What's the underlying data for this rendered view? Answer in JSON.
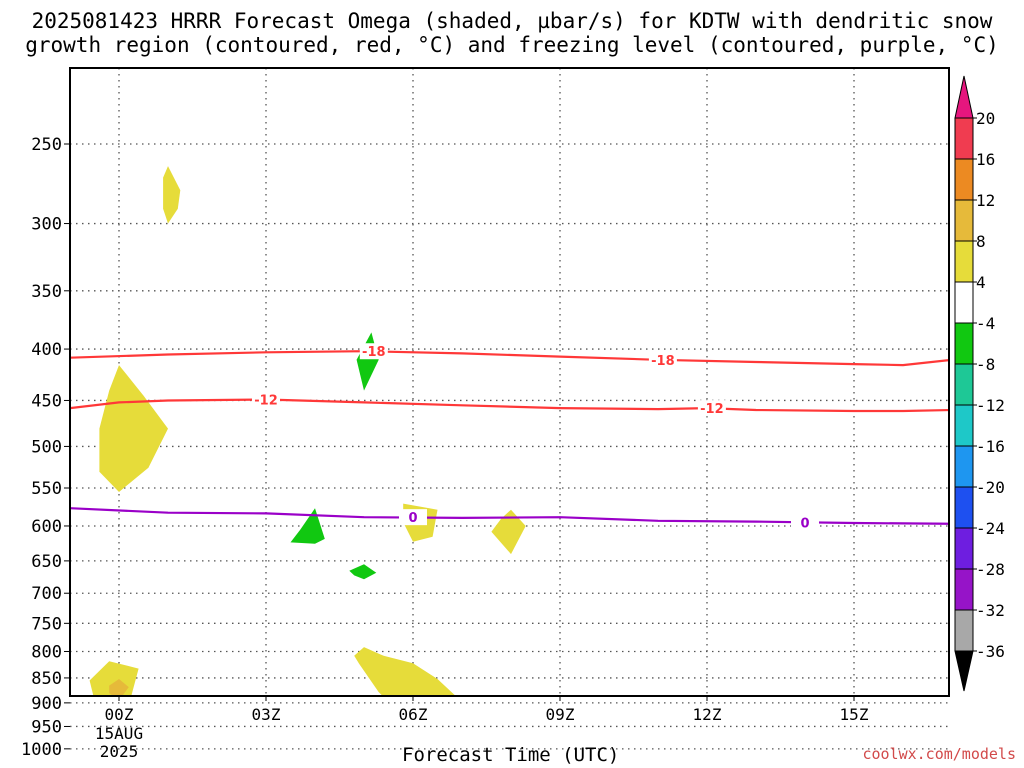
{
  "title": {
    "line1": "2025081423 HRRR Forecast Omega (shaded, µbar/s) for KDTW with dendritic snow",
    "line2": "growth region (contoured, red, °C) and freezing level (contoured, purple, °C)"
  },
  "credit": "coolwx.com/models",
  "chart_data": {
    "type": "time-height cross section",
    "title": "2025081423 HRRR Forecast Omega (shaded, µbar/s) for KDTW with dendritic snow growth region (contoured, red, °C) and freezing level (contoured, purple, °C)",
    "xlabel": "Forecast Time (UTC)",
    "ylabel": "",
    "xlim": [
      -1,
      17
    ],
    "ylim": [
      1030,
      200
    ],
    "y_scale": "log-pressure",
    "grid": true,
    "x_ticks": [
      {
        "value": 0,
        "label": "00Z",
        "sub": [
          "15AUG",
          "2025"
        ]
      },
      {
        "value": 3,
        "label": "03Z",
        "sub": []
      },
      {
        "value": 6,
        "label": "06Z",
        "sub": []
      },
      {
        "value": 9,
        "label": "09Z",
        "sub": []
      },
      {
        "value": 12,
        "label": "12Z",
        "sub": []
      },
      {
        "value": 15,
        "label": "15Z",
        "sub": []
      }
    ],
    "y_ticks": [
      250,
      300,
      350,
      400,
      450,
      500,
      550,
      600,
      650,
      700,
      750,
      800,
      850,
      900,
      950,
      1000
    ],
    "colorbar": {
      "unit": "µbar/s",
      "labels": [
        "20",
        "16",
        "12",
        "8",
        "4",
        "-4",
        "-8",
        "-12",
        "-16",
        "-20",
        "-24",
        "-28",
        "-32",
        "-36"
      ],
      "colors": [
        "#f03c50",
        "#ec8a22",
        "#e6ba3a",
        "#e6dc3a",
        "#ffffff",
        "#11c811",
        "#1ec896",
        "#1ec8c8",
        "#1e96f0",
        "#1e50f0",
        "#6e1ee0",
        "#9614c8",
        "#a8a8a8"
      ],
      "top_arrow": "#e6167e",
      "bottom_arrow": "#000000"
    },
    "contours": [
      {
        "name": "-18",
        "color": "#ff3838",
        "points": [
          [
            -1,
            408
          ],
          [
            1,
            405
          ],
          [
            3,
            403
          ],
          [
            5,
            402
          ],
          [
            7,
            404
          ],
          [
            9,
            407
          ],
          [
            11,
            410
          ],
          [
            13,
            412
          ],
          [
            15,
            414
          ],
          [
            16,
            415
          ],
          [
            17,
            410
          ]
        ],
        "labels": [
          {
            "x": 5.2,
            "y": 402,
            "text": "-18"
          },
          {
            "x": 11.1,
            "y": 410,
            "text": "-18"
          }
        ]
      },
      {
        "name": "-12",
        "color": "#ff3838",
        "points": [
          [
            -1,
            458
          ],
          [
            0,
            452
          ],
          [
            1,
            450
          ],
          [
            3,
            449
          ],
          [
            5,
            452
          ],
          [
            7,
            455
          ],
          [
            9,
            458
          ],
          [
            11,
            459
          ],
          [
            12,
            458
          ],
          [
            13,
            460
          ],
          [
            15,
            461
          ],
          [
            16,
            461
          ],
          [
            17,
            460
          ]
        ],
        "labels": [
          {
            "x": 3.0,
            "y": 449,
            "text": "-12"
          },
          {
            "x": 12.1,
            "y": 458,
            "text": "-12"
          }
        ]
      },
      {
        "name": "0",
        "color": "#9a00c8",
        "points": [
          [
            -1,
            576
          ],
          [
            1,
            582
          ],
          [
            3,
            583
          ],
          [
            5,
            588
          ],
          [
            7,
            589
          ],
          [
            9,
            588
          ],
          [
            11,
            593
          ],
          [
            13,
            594
          ],
          [
            15,
            596
          ],
          [
            17,
            597
          ]
        ],
        "labels": [
          {
            "x": 6.0,
            "y": 588,
            "text": "0"
          },
          {
            "x": 14.0,
            "y": 595,
            "text": "0"
          }
        ]
      }
    ],
    "shaded_regions": [
      {
        "level": "4 to 8",
        "color": "#e6dc3a",
        "points": [
          [
            1.0,
            263
          ],
          [
            1.25,
            278
          ],
          [
            1.2,
            290
          ],
          [
            1.0,
            300
          ],
          [
            0.9,
            290
          ],
          [
            0.9,
            270
          ]
        ]
      },
      {
        "level": "4 to 8",
        "color": "#e6dc3a",
        "points": [
          [
            0.0,
            415
          ],
          [
            0.5,
            445
          ],
          [
            1.0,
            480
          ],
          [
            0.6,
            525
          ],
          [
            0.0,
            555
          ],
          [
            -0.4,
            530
          ],
          [
            -0.4,
            480
          ],
          [
            -0.2,
            440
          ]
        ]
      },
      {
        "level": "-4 to -8",
        "color": "#11c811",
        "points": [
          [
            5.15,
            385
          ],
          [
            5.3,
            410
          ],
          [
            5.0,
            440
          ],
          [
            4.85,
            410
          ]
        ]
      },
      {
        "level": "-4 to -8",
        "color": "#11c811",
        "points": [
          [
            4.0,
            576
          ],
          [
            4.2,
            618
          ],
          [
            4.0,
            625
          ],
          [
            3.5,
            623
          ],
          [
            3.7,
            605
          ]
        ]
      },
      {
        "level": "-4 to -8",
        "color": "#11c811",
        "points": [
          [
            4.7,
            665
          ],
          [
            5.0,
            655
          ],
          [
            5.25,
            668
          ],
          [
            5.0,
            678
          ],
          [
            4.8,
            672
          ]
        ]
      },
      {
        "level": "4 to 8",
        "color": "#e6dc3a",
        "points": [
          [
            5.8,
            570
          ],
          [
            6.5,
            578
          ],
          [
            6.4,
            615
          ],
          [
            6.0,
            622
          ],
          [
            5.8,
            595
          ]
        ]
      },
      {
        "level": "4 to 8",
        "color": "#e6dc3a",
        "points": [
          [
            8.0,
            578
          ],
          [
            8.3,
            600
          ],
          [
            8.0,
            640
          ],
          [
            7.6,
            608
          ],
          [
            7.8,
            590
          ]
        ]
      },
      {
        "level": "4 to 8",
        "color": "#e6dc3a",
        "points": [
          [
            -0.6,
            855
          ],
          [
            -0.2,
            818
          ],
          [
            0.4,
            832
          ],
          [
            0.2,
            905
          ],
          [
            0.0,
            918
          ],
          [
            -0.5,
            895
          ]
        ]
      },
      {
        "level": "8 to 12",
        "color": "#e6ba3a",
        "points": [
          [
            -0.2,
            865
          ],
          [
            0.0,
            852
          ],
          [
            0.2,
            868
          ],
          [
            0.0,
            895
          ],
          [
            -0.2,
            880
          ]
        ]
      },
      {
        "level": "-4 to -8",
        "color": "#11c811",
        "points": [
          [
            1.0,
            892
          ],
          [
            1.1,
            900
          ],
          [
            1.0,
            915
          ],
          [
            0.9,
            900
          ]
        ]
      },
      {
        "level": "4 to 8",
        "color": "#e6dc3a",
        "points": [
          [
            3.9,
            893
          ],
          [
            4.1,
            903
          ],
          [
            4.0,
            918
          ],
          [
            3.8,
            905
          ]
        ]
      },
      {
        "level": "4 to 8",
        "color": "#e6dc3a",
        "points": [
          [
            5.0,
            792
          ],
          [
            5.4,
            808
          ],
          [
            6.0,
            822
          ],
          [
            6.5,
            852
          ],
          [
            7.0,
            898
          ],
          [
            6.3,
            918
          ],
          [
            5.8,
            928
          ],
          [
            5.3,
            878
          ],
          [
            4.9,
            823
          ],
          [
            4.8,
            808
          ]
        ]
      }
    ],
    "terrain": {
      "color": "#a25430",
      "top_hpa": 995
    }
  },
  "axis": {
    "xlabel": "Forecast Time (UTC)"
  }
}
